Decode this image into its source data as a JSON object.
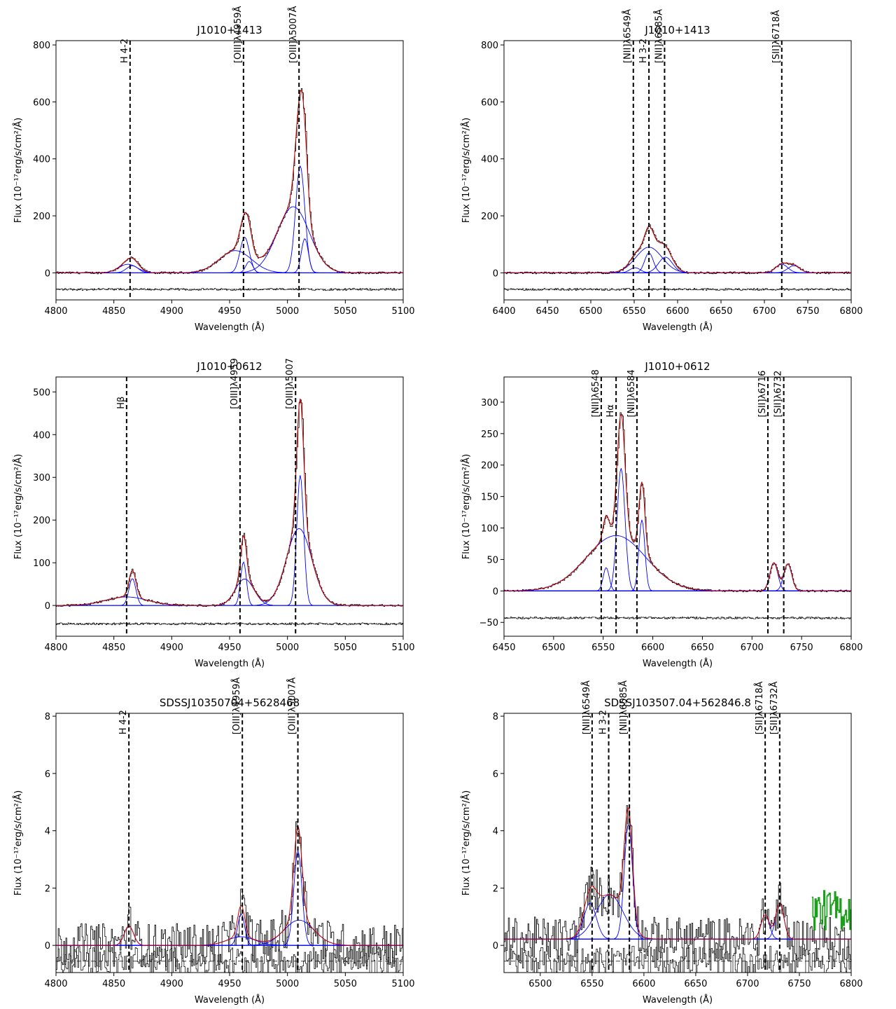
{
  "figure": {
    "xlabel": "Wavelength (Å)",
    "ylabel": "Flux (10⁻¹⁷erg/s/cm²/Å)"
  },
  "chart_data": [
    {
      "type": "line",
      "title": "J1010+1413",
      "xlabel": "Wavelength (Å)",
      "ylabel": "Flux (10⁻¹⁷erg/s/cm²/Å)",
      "xlim": [
        4800,
        5100
      ],
      "ylim": [
        -95,
        815
      ],
      "xticks": [
        4800,
        4850,
        4900,
        4950,
        5000,
        5050,
        5100
      ],
      "yticks": [
        0,
        200,
        400,
        600,
        800
      ],
      "residual_offset": -58,
      "continuum": 0,
      "lines": [
        {
          "x": 4864,
          "label": "H 4-2"
        },
        {
          "x": 4962,
          "label": "[OIII]λ4959Å"
        },
        {
          "x": 5010,
          "label": "[OIII]λ5007Å"
        }
      ],
      "components": [
        {
          "center": 4862,
          "amp": 30,
          "sigma": 8
        },
        {
          "center": 4866,
          "amp": 25,
          "sigma": 5
        },
        {
          "center": 4955,
          "amp": 78,
          "sigma": 14
        },
        {
          "center": 4963,
          "amp": 125,
          "sigma": 4
        },
        {
          "center": 4967,
          "amp": 40,
          "sigma": 3
        },
        {
          "center": 5005,
          "amp": 232,
          "sigma": 14
        },
        {
          "center": 5011,
          "amp": 375,
          "sigma": 4
        },
        {
          "center": 5015,
          "amp": 120,
          "sigma": 3
        }
      ]
    },
    {
      "type": "line",
      "title": "J1010+1413",
      "xlabel": "Wavelength (Å)",
      "ylabel": "Flux (10⁻¹⁷erg/s/cm²/Å)",
      "xlim": [
        6400,
        6800
      ],
      "ylim": [
        -95,
        815
      ],
      "xticks": [
        6400,
        6450,
        6500,
        6550,
        6600,
        6650,
        6700,
        6750,
        6800
      ],
      "yticks": [
        0,
        200,
        400,
        600,
        800
      ],
      "residual_offset": -58,
      "continuum": 0,
      "lines": [
        {
          "x": 6549,
          "label": "[NII]λ6549Å"
        },
        {
          "x": 6567,
          "label": "H 3-2"
        },
        {
          "x": 6585,
          "label": "[NII]λ6585Å"
        },
        {
          "x": 6720,
          "label": "[SII]λ6718Å"
        }
      ],
      "components": [
        {
          "center": 6551,
          "amp": 18,
          "sigma": 6
        },
        {
          "center": 6567,
          "amp": 90,
          "sigma": 15
        },
        {
          "center": 6567,
          "amp": 70,
          "sigma": 5
        },
        {
          "center": 6586,
          "amp": 55,
          "sigma": 8
        },
        {
          "center": 6720,
          "amp": 30,
          "sigma": 7
        },
        {
          "center": 6734,
          "amp": 25,
          "sigma": 7
        }
      ]
    },
    {
      "type": "line",
      "title": "J1010+0612",
      "xlabel": "Wavelength (Å)",
      "ylabel": "Flux (10⁻¹⁷erg/s/cm²/Å)",
      "xlim": [
        4800,
        5100
      ],
      "ylim": [
        -72,
        535
      ],
      "xticks": [
        4800,
        4850,
        4900,
        4950,
        5000,
        5050,
        5100
      ],
      "yticks": [
        0,
        100,
        200,
        300,
        400,
        500
      ],
      "residual_offset": -43,
      "continuum": 0,
      "lines": [
        {
          "x": 4861,
          "label": "Hβ"
        },
        {
          "x": 4959,
          "label": "[OIII]λ4959"
        },
        {
          "x": 5007,
          "label": "[OIII]λ5007"
        }
      ],
      "components": [
        {
          "center": 4861,
          "amp": 20,
          "sigma": 18
        },
        {
          "center": 4866,
          "amp": 63,
          "sigma": 3
        },
        {
          "center": 4963,
          "amp": 62,
          "sigma": 8
        },
        {
          "center": 4962,
          "amp": 102,
          "sigma": 2.5
        },
        {
          "center": 5010,
          "amp": 180,
          "sigma": 11
        },
        {
          "center": 5011,
          "amp": 305,
          "sigma": 3
        }
      ]
    },
    {
      "type": "line",
      "title": "J1010+0612",
      "xlabel": "Wavelength (Å)",
      "ylabel": "Flux (10⁻¹⁷erg/s/cm²/Å)",
      "xlim": [
        6450,
        6800
      ],
      "ylim": [
        -72,
        340
      ],
      "xticks": [
        6450,
        6500,
        6550,
        6600,
        6650,
        6700,
        6750,
        6800
      ],
      "yticks": [
        -50,
        0,
        50,
        100,
        150,
        200,
        250,
        300
      ],
      "residual_offset": -43,
      "continuum": 0,
      "lines": [
        {
          "x": 6548,
          "label": "[NII]λ6548"
        },
        {
          "x": 6563,
          "label": "Hα"
        },
        {
          "x": 6584,
          "label": "[NII]λ6584"
        },
        {
          "x": 6716,
          "label": "[SII]λ6716"
        },
        {
          "x": 6732,
          "label": "[SII]λ6732"
        }
      ],
      "components": [
        {
          "center": 6563,
          "amp": 88,
          "sigma": 30
        },
        {
          "center": 6553,
          "amp": 37,
          "sigma": 3
        },
        {
          "center": 6568,
          "amp": 195,
          "sigma": 4
        },
        {
          "center": 6589,
          "amp": 113,
          "sigma": 3
        },
        {
          "center": 6722,
          "amp": 45,
          "sigma": 4
        },
        {
          "center": 6736,
          "amp": 43,
          "sigma": 4
        }
      ]
    },
    {
      "type": "line",
      "title": "SDSSJ10350704+5628468",
      "xlabel": "Wavelength (Å)",
      "ylabel": "Flux (10⁻¹⁷erg/s/cm²/Å)",
      "xlim": [
        4800,
        5100
      ],
      "ylim": [
        -0.95,
        8.1
      ],
      "xticks": [
        4800,
        4850,
        4900,
        4950,
        5000,
        5050,
        5100
      ],
      "yticks": [
        0,
        2,
        4,
        6,
        8
      ],
      "residual_offset": -0.55,
      "continuum": 0,
      "lines": [
        {
          "x": 4863,
          "label": "H 4-2"
        },
        {
          "x": 4961,
          "label": "[OIII]λ4959Å"
        },
        {
          "x": 5009,
          "label": "[OIII]λ5007Å"
        }
      ],
      "components": [
        {
          "center": 4863,
          "amp": 0.68,
          "sigma": 4
        },
        {
          "center": 4960,
          "amp": 0.3,
          "sigma": 12
        },
        {
          "center": 4960,
          "amp": 1.1,
          "sigma": 3
        },
        {
          "center": 5010,
          "amp": 0.88,
          "sigma": 13
        },
        {
          "center": 5009,
          "amp": 3.3,
          "sigma": 3.5
        }
      ]
    },
    {
      "type": "line",
      "title": "SDSSJ103507.04+562846.8",
      "xlabel": "Wavelength (Å)",
      "ylabel": "Flux (10⁻¹⁷erg/s/cm²/Å)",
      "xlim": [
        6465,
        6800
      ],
      "ylim": [
        -0.95,
        8.1
      ],
      "xticks": [
        6500,
        6550,
        6600,
        6650,
        6700,
        6750,
        6800
      ],
      "yticks": [
        0,
        2,
        4,
        6,
        8
      ],
      "residual_offset": -0.55,
      "continuum": 0.22,
      "lines": [
        {
          "x": 6550,
          "label": "[NII]λ6549Å"
        },
        {
          "x": 6566,
          "label": "H 3-2"
        },
        {
          "x": 6586,
          "label": "[NII]λ6585Å"
        },
        {
          "x": 6717,
          "label": "[SII]λ6718Å"
        },
        {
          "x": 6731,
          "label": "[SII]λ6732Å"
        }
      ],
      "components": [
        {
          "center": 6548,
          "amp": 1.25,
          "sigma": 6
        },
        {
          "center": 6567,
          "amp": 1.55,
          "sigma": 13
        },
        {
          "center": 6585,
          "amp": 4.0,
          "sigma": 4
        },
        {
          "center": 6717,
          "amp": 0.85,
          "sigma": 4
        },
        {
          "center": 6731,
          "amp": 1.25,
          "sigma": 4
        }
      ],
      "masked_range": [
        6762,
        6800
      ]
    }
  ]
}
